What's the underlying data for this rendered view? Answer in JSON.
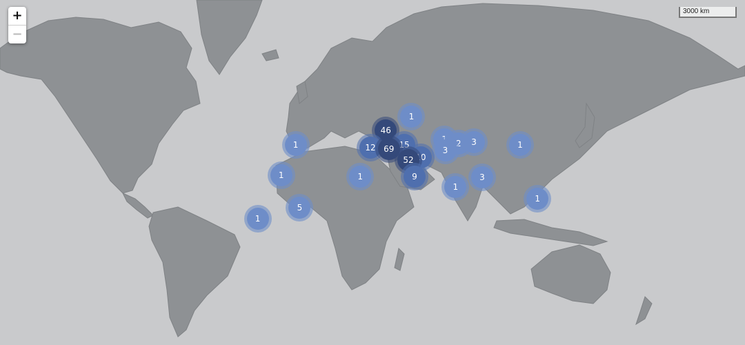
{
  "controls": {
    "zoom_in": "+",
    "zoom_out": "−"
  },
  "scale": {
    "label": "3000 km"
  },
  "colors": {
    "ocean": "#c9cacc",
    "land": "#8e9194",
    "cluster_small": "#6e8dc8",
    "cluster_medium": "#4f6fae",
    "cluster_large": "#34497a"
  },
  "clusters": [
    {
      "count": "1",
      "lat": 58,
      "lon": 37
    },
    {
      "count": "46",
      "lat": 50,
      "lon": 12
    },
    {
      "count": "1",
      "lat": 44,
      "lon": 69
    },
    {
      "count": "2",
      "lat": 41,
      "lon": 83
    },
    {
      "count": "3",
      "lat": 42,
      "lon": 98
    },
    {
      "count": "1",
      "lat": 40,
      "lon": -76
    },
    {
      "count": "15",
      "lat": 40,
      "lon": 30
    },
    {
      "count": "12",
      "lat": 38,
      "lon": -3
    },
    {
      "count": "69",
      "lat": 37,
      "lon": 15
    },
    {
      "count": "3",
      "lat": 36,
      "lon": 70
    },
    {
      "count": "1",
      "lat": 40,
      "lon": 143
    },
    {
      "count": "10",
      "lat": 30,
      "lon": 46
    },
    {
      "count": "52",
      "lat": 28,
      "lon": 34
    },
    {
      "count": "1",
      "lat": 14,
      "lon": -90
    },
    {
      "count": "1",
      "lat": 13,
      "lon": -13
    },
    {
      "count": "9",
      "lat": 13,
      "lon": 40
    },
    {
      "count": "3",
      "lat": 12,
      "lon": 106
    },
    {
      "count": "1",
      "lat": 3,
      "lon": 80
    },
    {
      "count": "1",
      "lat": -9,
      "lon": 160
    },
    {
      "count": "5",
      "lat": -17,
      "lon": -72
    },
    {
      "count": "1",
      "lat": -27,
      "lon": -113
    }
  ]
}
